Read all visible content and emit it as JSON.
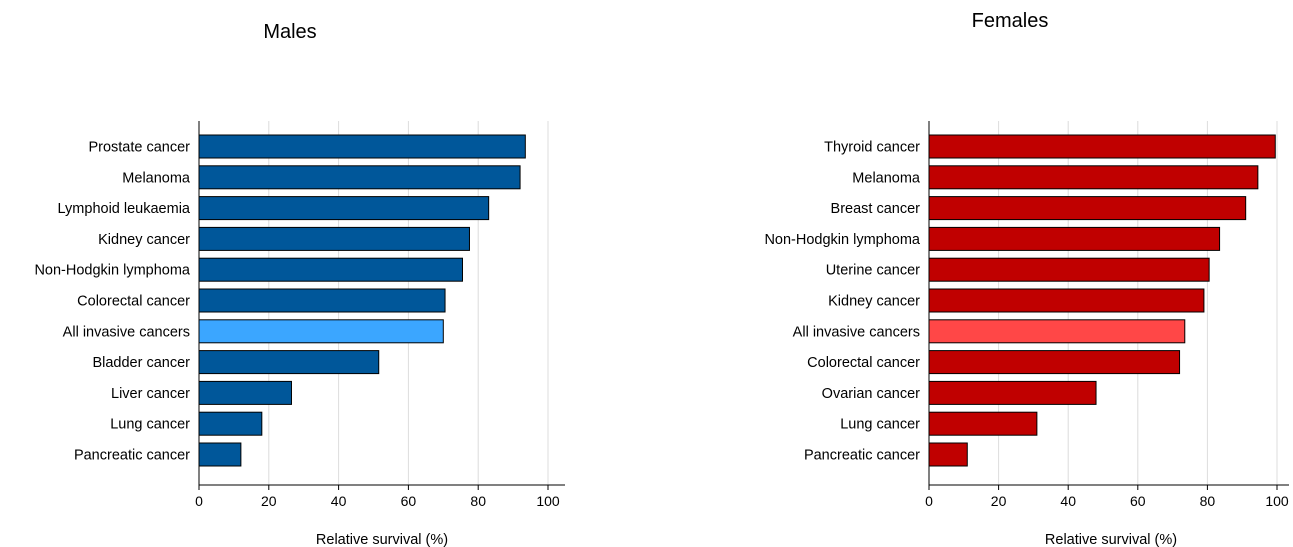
{
  "chart_data": [
    {
      "type": "bar",
      "orientation": "horizontal",
      "title": "Males",
      "xlabel": "Relative survival (%)",
      "ylabel": "",
      "xlim": [
        0,
        100
      ],
      "xticks": [
        0,
        20,
        40,
        60,
        80,
        100
      ],
      "grid": true,
      "bar_color": "#00579a",
      "highlight_color": "#3ba6ff",
      "highlight_category": "All invasive cancers",
      "categories": [
        "Prostate cancer",
        "Melanoma",
        "Lymphoid leukaemia",
        "Kidney cancer",
        "Non-Hodgkin lymphoma",
        "Colorectal cancer",
        "All invasive cancers",
        "Bladder cancer",
        "Liver cancer",
        "Lung cancer",
        "Pancreatic cancer"
      ],
      "values": [
        93.5,
        92,
        83,
        77.5,
        75.5,
        70.5,
        70,
        51.5,
        26.5,
        18,
        12
      ]
    },
    {
      "type": "bar",
      "orientation": "horizontal",
      "title": "Females",
      "xlabel": "Relative survival (%)",
      "ylabel": "",
      "xlim": [
        0,
        100
      ],
      "xticks": [
        0,
        20,
        40,
        60,
        80,
        100
      ],
      "grid": true,
      "bar_color": "#c00000",
      "highlight_color": "#ff4747",
      "highlight_category": "All invasive cancers",
      "categories": [
        "Thyroid cancer",
        "Melanoma",
        "Breast cancer",
        "Non-Hodgkin lymphoma",
        "Uterine cancer",
        "Kidney cancer",
        "All invasive cancers",
        "Colorectal cancer",
        "Ovarian cancer",
        "Lung cancer",
        "Pancreatic cancer"
      ],
      "values": [
        99.5,
        94.5,
        91,
        83.5,
        80.5,
        79,
        73.5,
        72,
        48,
        31,
        11
      ]
    }
  ]
}
